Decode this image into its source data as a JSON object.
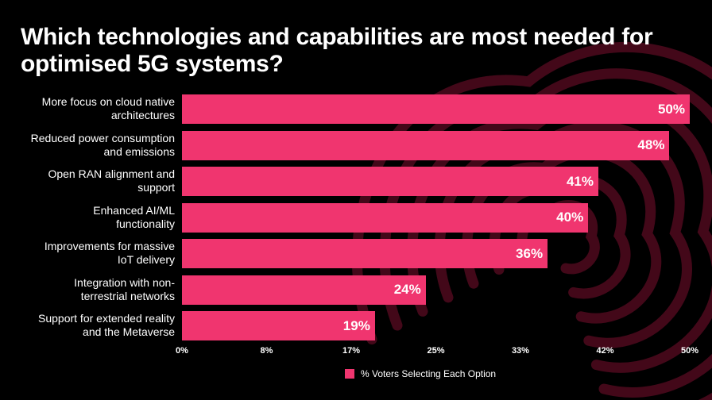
{
  "colors": {
    "background": "#000000",
    "bar": "#f0356f",
    "watermark": "#7a0f2d",
    "text": "#ffffff"
  },
  "watermark_icon": "cloud-fingerprint-logo",
  "chart_data": {
    "type": "bar",
    "orientation": "horizontal",
    "title": "Which technologies and capabilities are most needed for optimised 5G systems?",
    "categories": [
      "More focus on cloud native architectures",
      "Reduced power consumption and emissions",
      "Open RAN alignment and support",
      "Enhanced AI/ML functionality",
      "Improvements for massive IoT delivery",
      "Integration with non-terrestrial networks",
      "Support for extended reality and the Metaverse"
    ],
    "category_lines": [
      [
        "More focus on cloud native",
        "architectures"
      ],
      [
        "Reduced power consumption",
        "and emissions"
      ],
      [
        "Open RAN alignment and",
        "support"
      ],
      [
        "Enhanced AI/ML",
        "functionality"
      ],
      [
        "Improvements for massive",
        "IoT delivery"
      ],
      [
        "Integration with non-",
        "terrestrial networks"
      ],
      [
        "Support for extended reality",
        "and the Metaverse"
      ]
    ],
    "series": [
      {
        "name": "% Voters Selecting Each Option",
        "values": [
          50,
          48,
          41,
          40,
          36,
          24,
          19
        ],
        "labels": [
          "50%",
          "48%",
          "41%",
          "40%",
          "36%",
          "24%",
          "19%"
        ]
      }
    ],
    "xlim": [
      0,
      50
    ],
    "ticks": [
      0,
      8.33,
      16.67,
      25,
      33.33,
      41.67,
      50
    ],
    "tick_labels": [
      "0%",
      "8%",
      "17%",
      "25%",
      "33%",
      "42%",
      "50%"
    ],
    "legend_position": "bottom",
    "grid": false
  }
}
